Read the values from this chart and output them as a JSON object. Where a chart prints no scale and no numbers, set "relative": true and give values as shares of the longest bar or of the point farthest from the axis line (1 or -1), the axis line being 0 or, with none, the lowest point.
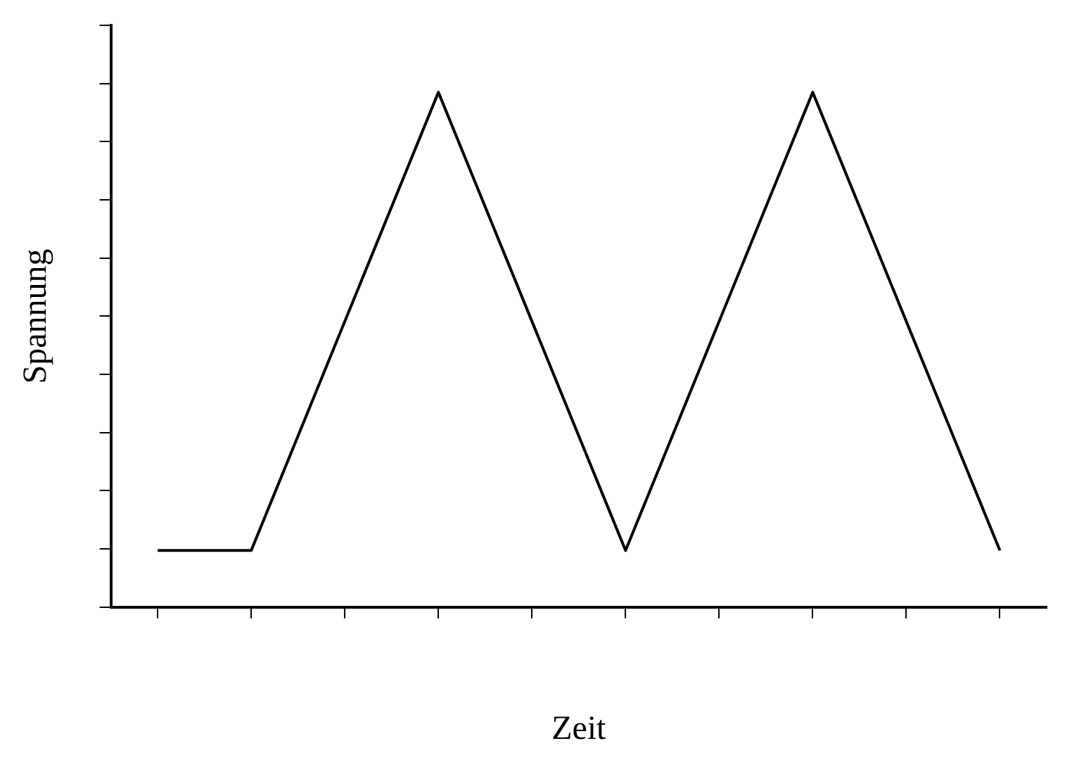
{
  "chart_data": {
    "type": "line",
    "xlabel": "Zeit",
    "ylabel": "Spannung",
    "relative": true,
    "categories": [
      null,
      null,
      null,
      null,
      null,
      null,
      null,
      null,
      null,
      null
    ],
    "series": [
      {
        "color": "#000000",
        "values": [
          0.11,
          0.11,
          null,
          1,
          null,
          0.11,
          null,
          1,
          null,
          0.11
        ]
      }
    ],
    "grid": false,
    "legend": false,
    "marker": "none",
    "line_style": "solid"
  }
}
